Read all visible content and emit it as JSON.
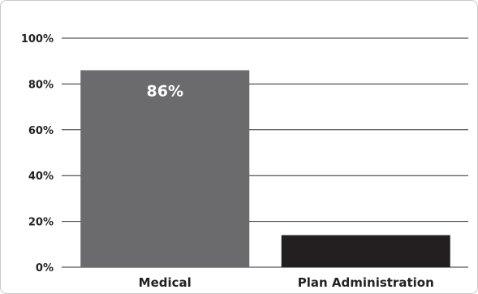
{
  "chart_data": {
    "type": "bar",
    "categories": [
      "Medical",
      "Plan Administration"
    ],
    "values": [
      86,
      14
    ],
    "data_labels": [
      "86%",
      ""
    ],
    "colors": [
      "#6b6b6e",
      "#231f20"
    ],
    "ylim": [
      0,
      100
    ],
    "yticks": [
      0,
      20,
      40,
      60,
      80,
      100
    ],
    "ytick_labels": [
      "0%",
      "20%",
      "40%",
      "60%",
      "80%",
      "100%"
    ],
    "title": "",
    "xlabel": "",
    "ylabel": "",
    "grid": true
  }
}
